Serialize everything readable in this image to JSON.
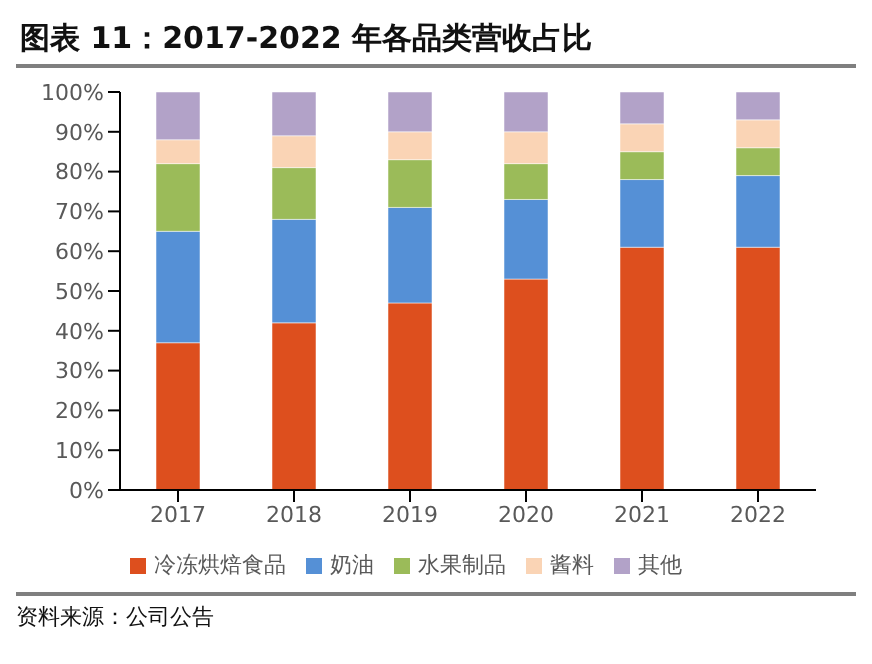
{
  "chart_data": {
    "type": "bar",
    "title": "图表 11：2017-2022 年各品类营收占比",
    "stacked": true,
    "categories": [
      "2017",
      "2018",
      "2019",
      "2020",
      "2021",
      "2022"
    ],
    "series": [
      {
        "name": "冷冻烘焙食品",
        "color": "#dd4f1e",
        "values": [
          37,
          42,
          47,
          53,
          61,
          61
        ]
      },
      {
        "name": "奶油",
        "color": "#5590d6",
        "values": [
          28,
          26,
          24,
          20,
          17,
          18
        ]
      },
      {
        "name": "水果制品",
        "color": "#9bbb59",
        "values": [
          17,
          13,
          12,
          9,
          7,
          7
        ]
      },
      {
        "name": "酱料",
        "color": "#fad4b5",
        "values": [
          6,
          8,
          7,
          8,
          7,
          7
        ]
      },
      {
        "name": "其他",
        "color": "#b2a2c8",
        "values": [
          12,
          11,
          10,
          10,
          8,
          7
        ]
      }
    ],
    "ylim": [
      0,
      100
    ],
    "yticks": [
      {
        "value": 0,
        "label": "0%"
      },
      {
        "value": 10,
        "label": "10%"
      },
      {
        "value": 20,
        "label": "20%"
      },
      {
        "value": 30,
        "label": "30%"
      },
      {
        "value": 40,
        "label": "40%"
      },
      {
        "value": 50,
        "label": "50%"
      },
      {
        "value": 60,
        "label": "60%"
      },
      {
        "value": 70,
        "label": "70%"
      },
      {
        "value": 80,
        "label": "80%"
      },
      {
        "value": 90,
        "label": "90%"
      },
      {
        "value": 100,
        "label": "100%"
      }
    ],
    "grid": false,
    "legend": "bottom",
    "annotations": [
      "资料来源：公司公告"
    ]
  }
}
